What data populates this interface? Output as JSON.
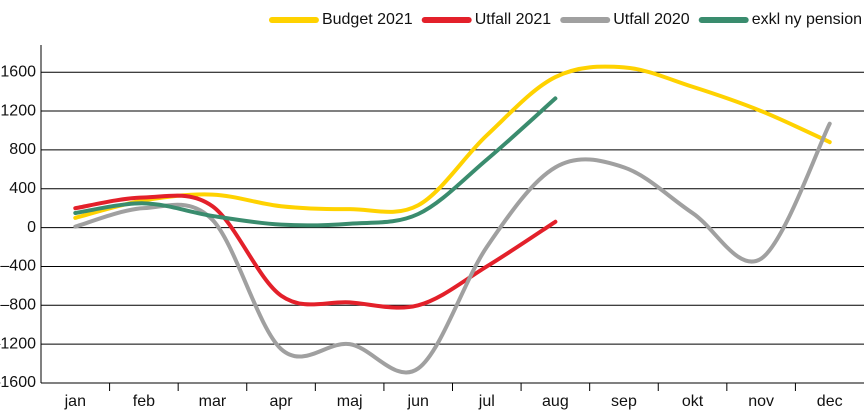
{
  "chart_data": {
    "type": "line",
    "categories": [
      "jan",
      "feb",
      "mar",
      "apr",
      "maj",
      "jun",
      "jul",
      "aug",
      "sep",
      "okt",
      "nov",
      "dec"
    ],
    "series": [
      {
        "name": "Budget 2021",
        "color": "#ffd200",
        "values": [
          100,
          280,
          340,
          220,
          190,
          230,
          950,
          1550,
          1650,
          1450,
          1200,
          880
        ]
      },
      {
        "name": "Utfall 2021",
        "color": "#e3202a",
        "values": [
          200,
          310,
          220,
          -700,
          -770,
          -800,
          -400,
          60,
          null,
          null,
          null,
          null
        ]
      },
      {
        "name": "Utfall 2020",
        "color": "#a0a0a0",
        "values": [
          10,
          200,
          80,
          -1250,
          -1200,
          -1450,
          -200,
          620,
          620,
          150,
          -320,
          1070
        ]
      },
      {
        "name": "exkl ny pension",
        "color": "#3a8c6e",
        "values": [
          150,
          250,
          120,
          30,
          40,
          140,
          700,
          1330,
          null,
          null,
          null,
          null
        ]
      }
    ],
    "ylim": [
      -1600,
      1880
    ],
    "yticks": [
      {
        "value": -1600,
        "label": "–1600"
      },
      {
        "value": -1200,
        "label": "–1200"
      },
      {
        "value": -800,
        "label": "–800"
      },
      {
        "value": -400,
        "label": "–400"
      },
      0,
      400,
      800,
      1200,
      1600
    ],
    "grid": true,
    "legend": "top-right"
  }
}
